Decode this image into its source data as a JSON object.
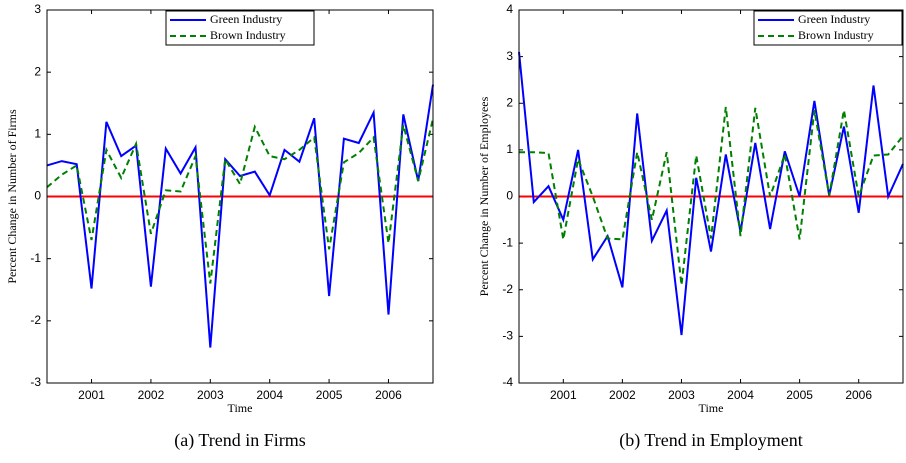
{
  "chart_data": [
    {
      "type": "line",
      "caption": "(a) Trend in Firms",
      "xlabel": "Time",
      "ylabel": "Percent Change in Number of Firms",
      "x": [
        2000.25,
        2000.5,
        2000.75,
        2001,
        2001.25,
        2001.5,
        2001.75,
        2002,
        2002.25,
        2002.5,
        2002.75,
        2003,
        2003.25,
        2003.5,
        2003.75,
        2004,
        2004.25,
        2004.5,
        2004.75,
        2005,
        2005.25,
        2005.5,
        2005.75,
        2006,
        2006.25,
        2006.5,
        2006.75
      ],
      "series": [
        {
          "name": "Green Industry",
          "color": "#0000ff",
          "dash": false,
          "values": [
            0.5,
            0.57,
            0.52,
            -1.48,
            1.2,
            0.65,
            0.82,
            -1.45,
            0.77,
            0.37,
            0.79,
            -2.43,
            0.6,
            0.33,
            0.4,
            0.02,
            0.75,
            0.56,
            1.26,
            -1.6,
            0.93,
            0.86,
            1.35,
            -1.9,
            1.32,
            0.25,
            1.8
          ]
        },
        {
          "name": "Brown Industry",
          "color": "#008000",
          "dash": true,
          "values": [
            0.15,
            0.35,
            0.5,
            -0.7,
            0.75,
            0.3,
            0.85,
            -0.6,
            0.1,
            0.08,
            0.65,
            -1.4,
            0.6,
            0.2,
            1.12,
            0.65,
            0.6,
            0.75,
            0.95,
            -0.85,
            0.55,
            0.7,
            0.95,
            -0.75,
            1.15,
            0.25,
            1.25
          ]
        }
      ],
      "xlim": [
        2000.25,
        2006.75
      ],
      "xticks": [
        2001,
        2002,
        2003,
        2004,
        2005,
        2006
      ],
      "ylim": [
        -3,
        3
      ],
      "yticks": [
        -3,
        -2,
        -1,
        0,
        1,
        2,
        3
      ],
      "hline": 0,
      "hline_color": "#ff0000",
      "legend": "upper center"
    },
    {
      "type": "line",
      "caption": "(b) Trend in Employment",
      "xlabel": "Time",
      "ylabel": "Percent Change in Number of Employees",
      "x": [
        2000.25,
        2000.5,
        2000.75,
        2001,
        2001.25,
        2001.5,
        2001.75,
        2002,
        2002.25,
        2002.5,
        2002.75,
        2003,
        2003.25,
        2003.5,
        2003.75,
        2004,
        2004.25,
        2004.5,
        2004.75,
        2005,
        2005.25,
        2005.5,
        2005.75,
        2006,
        2006.25,
        2006.5,
        2006.75
      ],
      "series": [
        {
          "name": "Green Industry",
          "color": "#0000ff",
          "dash": false,
          "values": [
            3.1,
            -0.12,
            0.22,
            -0.5,
            1.0,
            -1.35,
            -0.85,
            -1.95,
            1.78,
            -0.95,
            -0.3,
            -2.97,
            0.4,
            -1.18,
            0.9,
            -0.75,
            1.15,
            -0.7,
            0.97,
            0.0,
            2.05,
            0.02,
            1.5,
            -0.35,
            2.38,
            0.0,
            0.7
          ]
        },
        {
          "name": "Brown Industry",
          "color": "#008000",
          "dash": true,
          "values": [
            0.95,
            0.95,
            0.93,
            -0.92,
            0.8,
            0.0,
            -0.9,
            -0.92,
            0.95,
            -0.5,
            0.95,
            -1.9,
            0.88,
            -0.9,
            1.92,
            -0.85,
            1.9,
            0.0,
            0.9,
            -0.92,
            1.85,
            0.02,
            1.85,
            0.0,
            0.88,
            0.9,
            1.3
          ]
        }
      ],
      "xlim": [
        2000.25,
        2006.75
      ],
      "xticks": [
        2001,
        2002,
        2003,
        2004,
        2005,
        2006
      ],
      "ylim": [
        -4,
        4
      ],
      "yticks": [
        -4,
        -3,
        -2,
        -1,
        0,
        1,
        2,
        3,
        4
      ],
      "hline": 0,
      "hline_color": "#ff0000",
      "legend": "upper right"
    }
  ]
}
